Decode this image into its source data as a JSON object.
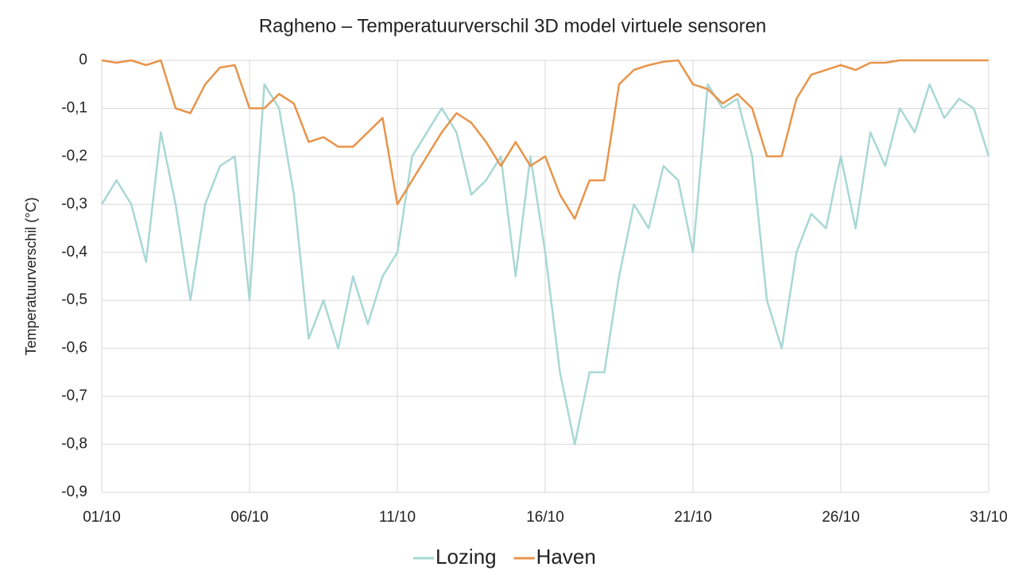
{
  "chart_data": {
    "type": "line",
    "title": "Ragheno – Temperatuurverschil 3D model virtuele sensoren",
    "y_label": "Temperatuurverschil (°C)",
    "x": [
      1,
      1.5,
      2,
      2.5,
      3,
      3.5,
      4,
      4.5,
      5,
      5.5,
      6,
      6.5,
      7,
      7.5,
      8,
      8.5,
      9,
      9.5,
      10,
      10.5,
      11,
      11.5,
      12,
      12.5,
      13,
      13.5,
      14,
      14.5,
      15,
      15.5,
      16,
      16.5,
      17,
      17.5,
      18,
      18.5,
      19,
      19.5,
      20,
      20.5,
      21,
      21.5,
      22,
      22.5,
      23,
      23.5,
      24,
      24.5,
      25,
      25.5,
      26,
      26.5,
      27,
      27.5,
      28,
      28.5,
      29,
      29.5,
      30,
      30.5,
      31
    ],
    "series": [
      {
        "name": "Lozing",
        "color": "#a8d8d4",
        "values": [
          -0.3,
          -0.25,
          -0.3,
          -0.42,
          -0.15,
          -0.3,
          -0.5,
          -0.3,
          -0.22,
          -0.2,
          -0.5,
          -0.05,
          -0.1,
          -0.28,
          -0.58,
          -0.5,
          -0.6,
          -0.45,
          -0.55,
          -0.45,
          -0.4,
          -0.2,
          -0.15,
          -0.1,
          -0.15,
          -0.28,
          -0.25,
          -0.2,
          -0.45,
          -0.2,
          -0.4,
          -0.65,
          -0.8,
          -0.65,
          -0.65,
          -0.45,
          -0.3,
          -0.35,
          -0.22,
          -0.25,
          -0.4,
          -0.05,
          -0.1,
          -0.08,
          -0.2,
          -0.5,
          -0.6,
          -0.4,
          -0.32,
          -0.35,
          -0.2,
          -0.35,
          -0.15,
          -0.22,
          -0.1,
          -0.15,
          -0.05,
          -0.12,
          -0.08,
          -0.1,
          -0.2
        ]
      },
      {
        "name": "Haven",
        "color": "#e8944a",
        "values": [
          0,
          -0.005,
          0,
          -0.01,
          0,
          -0.1,
          -0.11,
          -0.05,
          -0.015,
          -0.01,
          -0.1,
          -0.1,
          -0.07,
          -0.09,
          -0.17,
          -0.16,
          -0.18,
          -0.18,
          -0.15,
          -0.12,
          -0.3,
          -0.25,
          -0.2,
          -0.15,
          -0.11,
          -0.13,
          -0.17,
          -0.22,
          -0.17,
          -0.22,
          -0.2,
          -0.28,
          -0.33,
          -0.25,
          -0.25,
          -0.05,
          -0.02,
          -0.01,
          -0.003,
          0,
          -0.05,
          -0.06,
          -0.09,
          -0.07,
          -0.1,
          -0.2,
          -0.2,
          -0.08,
          -0.03,
          -0.02,
          -0.01,
          -0.02,
          -0.005,
          -0.005,
          0,
          0,
          0,
          0,
          0,
          0,
          0
        ]
      }
    ],
    "xlim": [
      1,
      31
    ],
    "xticks": [
      {
        "value": 1,
        "label": "01/10"
      },
      {
        "value": 6,
        "label": "06/10"
      },
      {
        "value": 11,
        "label": "11/10"
      },
      {
        "value": 16,
        "label": "16/10"
      },
      {
        "value": 21,
        "label": "21/10"
      },
      {
        "value": 26,
        "label": "26/10"
      },
      {
        "value": 31,
        "label": "31/10"
      }
    ],
    "ylim": [
      -0.9,
      0
    ],
    "yticks": [
      0,
      {
        "value": -0.1,
        "label": "-0,1"
      },
      {
        "value": -0.2,
        "label": "-0,2"
      },
      {
        "value": -0.3,
        "label": "-0,3"
      },
      {
        "value": -0.4,
        "label": "-0,4"
      },
      {
        "value": -0.5,
        "label": "-0,5"
      },
      {
        "value": -0.6,
        "label": "-0,6"
      },
      {
        "value": -0.7,
        "label": "-0,7"
      },
      {
        "value": -0.8,
        "label": "-0,8"
      },
      {
        "value": -0.9,
        "label": "-0,9"
      }
    ],
    "grid": true,
    "legend": "bottom"
  }
}
